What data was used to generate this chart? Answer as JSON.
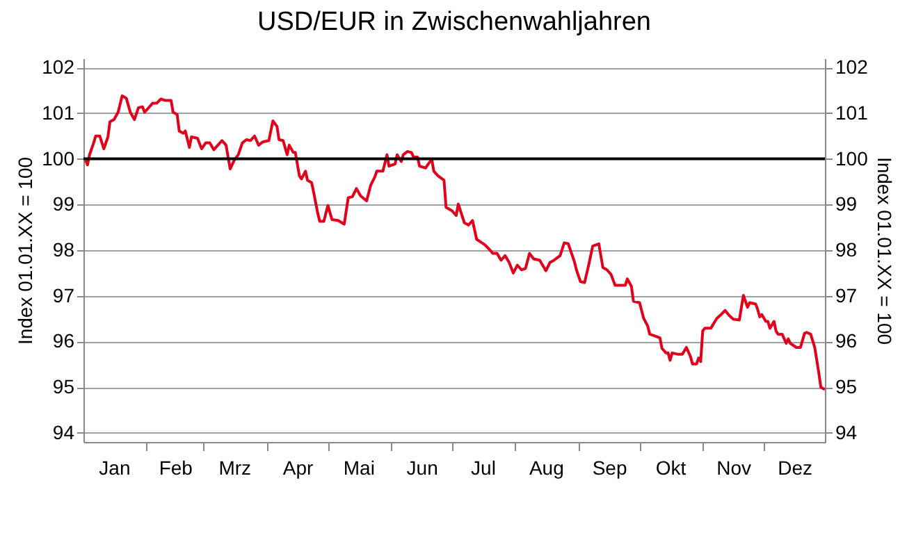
{
  "chart_data": {
    "type": "line",
    "title": "USD/EUR in Zwischenwahljahren",
    "ylabel": "Index 01.01.XX = 100",
    "y2label": "Index 01.01.XX = 100",
    "xlim": [
      "--01-01",
      "--12-31"
    ],
    "xticks": [
      {
        "value": "--01-16",
        "label": "Jan"
      },
      {
        "value": "--02-01",
        "label": null
      },
      {
        "value": "--02-15",
        "label": "Feb"
      },
      {
        "value": "--03-01",
        "label": null
      },
      {
        "value": "--03-16",
        "label": "Mrz"
      },
      {
        "value": "--04-01",
        "label": null
      },
      {
        "value": "--04-16",
        "label": "Apr"
      },
      {
        "value": "--05-01",
        "label": null
      },
      {
        "value": "--05-16",
        "label": "Mai"
      },
      {
        "value": "--06-01",
        "label": null
      },
      {
        "value": "--06-16",
        "label": "Jun"
      },
      {
        "value": "--07-01",
        "label": null
      },
      {
        "value": "--07-16",
        "label": "Jul"
      },
      {
        "value": "--08-01",
        "label": null
      },
      {
        "value": "--08-16",
        "label": "Aug"
      },
      {
        "value": "--09-01",
        "label": null
      },
      {
        "value": "--09-16",
        "label": "Sep"
      },
      {
        "value": "--10-01",
        "label": null
      },
      {
        "value": "--10-16",
        "label": "Okt"
      },
      {
        "value": "--11-01",
        "label": null
      },
      {
        "value": "--11-16",
        "label": "Nov"
      },
      {
        "value": "--12-01",
        "label": null
      },
      {
        "value": "--12-16",
        "label": "Dez"
      }
    ],
    "ylim": [
      93.8,
      102.2
    ],
    "yticks": [
      94,
      95,
      96,
      97,
      98,
      99,
      100,
      101,
      102
    ],
    "y2lim": [
      93.8,
      102.2
    ],
    "y2ticks": [
      94,
      95,
      96,
      97,
      98,
      99,
      100,
      101,
      102
    ],
    "grid": "y",
    "legend": false,
    "marker": "none",
    "line_style": "solid",
    "ref_lines": [
      {
        "axis": "y",
        "value": 100,
        "color": "#000000"
      }
    ],
    "series": [
      {
        "color": "#e2001a",
        "x": [
          "--01-02",
          "--01-03",
          "--01-04",
          "--01-06",
          "--01-07",
          "--01-09",
          "--01-11",
          "--01-13",
          "--01-14",
          "--01-16",
          "--01-18",
          "--01-20",
          "--01-22",
          "--01-24",
          "--01-26",
          "--01-28",
          "--01-30",
          "--01-31",
          "--02-02",
          "--02-04",
          "--02-06",
          "--02-08",
          "--02-10",
          "--02-13",
          "--02-14",
          "--02-16",
          "--02-17",
          "--02-19",
          "--02-20",
          "--02-22",
          "--02-23",
          "--02-26",
          "--02-28",
          "--03-02",
          "--03-04",
          "--03-06",
          "--03-08",
          "--03-10",
          "--03-12",
          "--03-14",
          "--03-16",
          "--03-18",
          "--03-20",
          "--03-22",
          "--03-24",
          "--03-26",
          "--03-28",
          "--03-30",
          "--04-02",
          "--04-04",
          "--04-06",
          "--04-07",
          "--04-09",
          "--04-11",
          "--04-12",
          "--04-14",
          "--04-15",
          "--04-17",
          "--04-18",
          "--04-20",
          "--04-21",
          "--04-23",
          "--04-24",
          "--04-26",
          "--04-27",
          "--04-29",
          "--05-01",
          "--05-03",
          "--05-06",
          "--05-09",
          "--05-11",
          "--05-13",
          "--05-15",
          "--05-17",
          "--05-20",
          "--05-22",
          "--05-24",
          "--05-25",
          "--05-28",
          "--05-30",
          "--05-31",
          "--06-03",
          "--06-04",
          "--06-06",
          "--06-07",
          "--06-09",
          "--06-11",
          "--06-12",
          "--06-14",
          "--06-15",
          "--06-18",
          "--06-19",
          "--06-21",
          "--06-22",
          "--06-24",
          "--06-27",
          "--06-28",
          "--07-01",
          "--07-03",
          "--07-04",
          "--07-07",
          "--07-09",
          "--07-11",
          "--07-13",
          "--07-17",
          "--07-19",
          "--07-21",
          "--07-23",
          "--07-25",
          "--07-27",
          "--07-29",
          "--07-31",
          "--08-02",
          "--08-04",
          "--08-06",
          "--08-08",
          "--08-10",
          "--08-13",
          "--08-16",
          "--08-18",
          "--08-20",
          "--08-23",
          "--08-25",
          "--08-27",
          "--08-30",
          "--08-31",
          "--09-02",
          "--09-04",
          "--09-06",
          "--09-08",
          "--09-11",
          "--09-13",
          "--09-15",
          "--09-17",
          "--09-19",
          "--09-24",
          "--09-25",
          "--09-27",
          "--09-28",
          "--10-01",
          "--10-03",
          "--10-05",
          "--10-06",
          "--10-08",
          "--10-11",
          "--10-12",
          "--10-14",
          "--10-15",
          "--10-16",
          "--10-17",
          "--10-20",
          "--10-22",
          "--10-24",
          "--10-26",
          "--10-27",
          "--10-29",
          "--10-30",
          "--10-31",
          "--11-01",
          "--11-02",
          "--11-05",
          "--11-07",
          "--11-08",
          "--11-10",
          "--11-12",
          "--11-14",
          "--11-16",
          "--11-19",
          "--11-20",
          "--11-21",
          "--11-23",
          "--11-24",
          "--11-27",
          "--11-28",
          "--11-29",
          "--11-30",
          "--12-02",
          "--12-03",
          "--12-04",
          "--12-06",
          "--12-07",
          "--12-08",
          "--12-10",
          "--12-12",
          "--12-13",
          "--12-14",
          "--12-16",
          "--12-17",
          "--12-19",
          "--12-21",
          "--12-22",
          "--12-24",
          "--12-26",
          "--12-28",
          "--12-29",
          "--12-31"
        ],
        "values": [
          99.97,
          99.87,
          100.09,
          100.35,
          100.5,
          100.5,
          100.22,
          100.48,
          100.81,
          100.86,
          101.02,
          101.38,
          101.33,
          101.02,
          100.86,
          101.12,
          101.14,
          101.02,
          101.12,
          101.22,
          101.22,
          101.31,
          101.28,
          101.28,
          101.02,
          100.97,
          100.61,
          100.56,
          100.61,
          100.25,
          100.48,
          100.45,
          100.22,
          100.35,
          100.35,
          100.2,
          100.3,
          100.4,
          100.3,
          99.78,
          99.97,
          100.09,
          100.35,
          100.42,
          100.4,
          100.5,
          100.3,
          100.37,
          100.4,
          100.83,
          100.71,
          100.42,
          100.4,
          100.09,
          100.3,
          100.14,
          100.14,
          99.63,
          99.56,
          99.73,
          99.53,
          99.48,
          99.27,
          98.81,
          98.63,
          98.63,
          98.98,
          98.67,
          98.65,
          98.57,
          99.15,
          99.17,
          99.35,
          99.19,
          99.08,
          99.42,
          99.6,
          99.73,
          99.73,
          100.09,
          99.84,
          99.89,
          100.09,
          99.94,
          100.09,
          100.16,
          100.14,
          100.04,
          100.04,
          99.84,
          99.8,
          99.87,
          99.99,
          99.73,
          99.63,
          99.53,
          98.94,
          98.86,
          98.76,
          99.01,
          98.6,
          98.55,
          98.65,
          98.24,
          98.12,
          98.03,
          97.93,
          97.93,
          97.78,
          97.88,
          97.73,
          97.5,
          97.67,
          97.57,
          97.6,
          97.93,
          97.81,
          97.78,
          97.55,
          97.73,
          97.78,
          97.88,
          98.16,
          98.14,
          97.75,
          97.57,
          97.31,
          97.29,
          97.67,
          98.09,
          98.14,
          97.62,
          97.57,
          97.47,
          97.23,
          97.23,
          97.37,
          97.21,
          96.88,
          96.85,
          96.51,
          96.34,
          96.16,
          96.13,
          96.08,
          95.85,
          95.75,
          95.75,
          95.59,
          95.75,
          95.72,
          95.72,
          95.87,
          95.67,
          95.51,
          95.51,
          95.64,
          95.56,
          96.23,
          96.29,
          96.29,
          96.44,
          96.51,
          96.59,
          96.68,
          96.57,
          96.49,
          96.47,
          96.75,
          97.01,
          96.75,
          96.85,
          96.82,
          96.7,
          96.54,
          96.59,
          96.44,
          96.44,
          96.29,
          96.44,
          96.23,
          96.16,
          96.16,
          95.96,
          96.06,
          95.96,
          95.9,
          95.87,
          95.87,
          96.18,
          96.2,
          96.16,
          95.87,
          95.31,
          95.0,
          94.95
        ]
      }
    ]
  }
}
